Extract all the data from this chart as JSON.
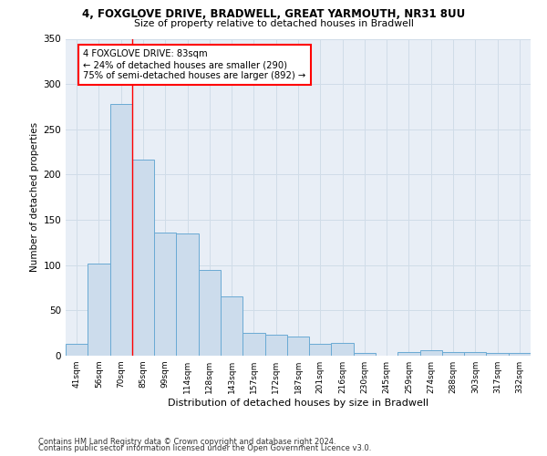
{
  "title1": "4, FOXGLOVE DRIVE, BRADWELL, GREAT YARMOUTH, NR31 8UU",
  "title2": "Size of property relative to detached houses in Bradwell",
  "xlabel": "Distribution of detached houses by size in Bradwell",
  "ylabel": "Number of detached properties",
  "bar_labels": [
    "41sqm",
    "56sqm",
    "70sqm",
    "85sqm",
    "99sqm",
    "114sqm",
    "128sqm",
    "143sqm",
    "157sqm",
    "172sqm",
    "187sqm",
    "201sqm",
    "216sqm",
    "230sqm",
    "245sqm",
    "259sqm",
    "274sqm",
    "288sqm",
    "303sqm",
    "317sqm",
    "332sqm"
  ],
  "bar_values": [
    13,
    102,
    278,
    217,
    136,
    135,
    95,
    65,
    25,
    23,
    21,
    13,
    14,
    3,
    0,
    4,
    6,
    4,
    4,
    3,
    3
  ],
  "bar_color": "#ccdcec",
  "bar_edge_color": "#6aaad4",
  "grid_color": "#d0dce8",
  "background_color": "#e8eef6",
  "red_line_x": 2.5,
  "annotation_text": "4 FOXGLOVE DRIVE: 83sqm\n← 24% of detached houses are smaller (290)\n75% of semi-detached houses are larger (892) →",
  "annotation_box_color": "white",
  "annotation_box_edge_color": "red",
  "footnote1": "Contains HM Land Registry data © Crown copyright and database right 2024.",
  "footnote2": "Contains public sector information licensed under the Open Government Licence v3.0.",
  "ylim": [
    0,
    350
  ],
  "yticks": [
    0,
    50,
    100,
    150,
    200,
    250,
    300,
    350
  ]
}
